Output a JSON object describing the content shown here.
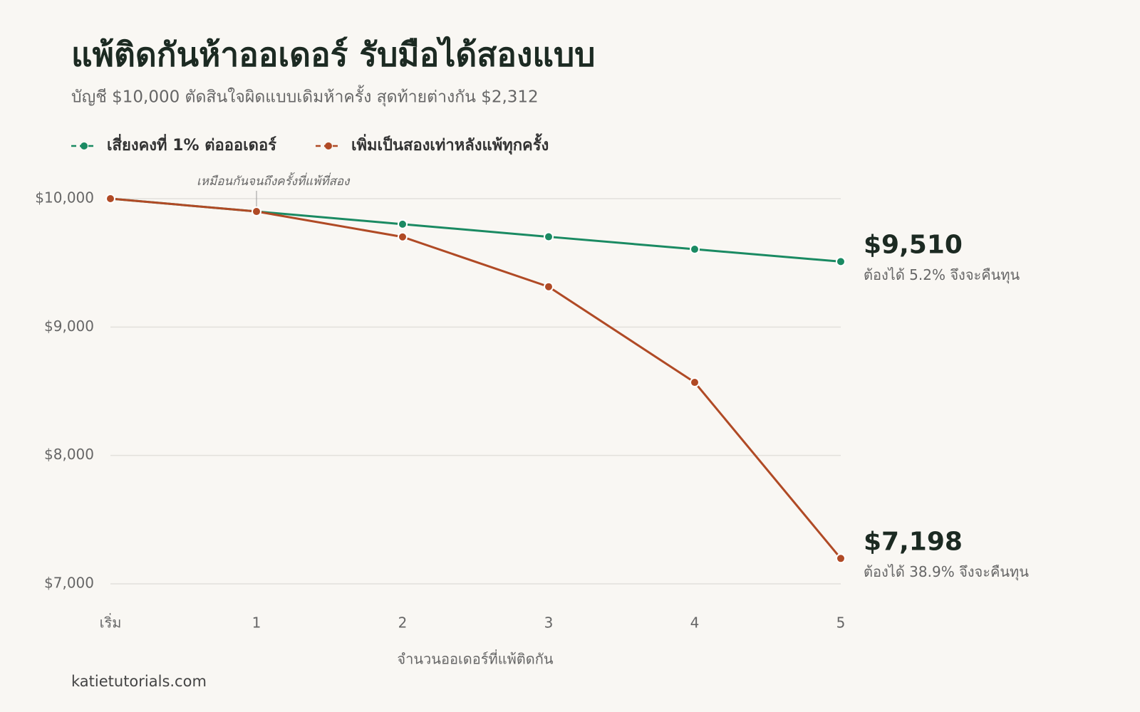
{
  "chart_data": {
    "type": "line",
    "title": "แพ้ติดกันห้าออเดอร์ รับมือได้สองแบบ",
    "subtitle": "บัญชี $10,000 ตัดสินใจผิดแบบเดิมห้าครั้ง สุดท้ายต่างกัน $2,312",
    "x_label": "จำนวนออเดอร์ที่แพ้ติดกัน",
    "source": "katietutorials.com",
    "categories": [
      "เริ่ม",
      "1",
      "2",
      "3",
      "4",
      "5"
    ],
    "series": [
      {
        "name": "เสี่ยงคงที่ 1% ต่อออเดอร์",
        "color": "#1a8a62",
        "values": [
          10000,
          9900,
          9801,
          9703,
          9606,
          9510
        ],
        "value_labels": [
          null,
          null,
          null,
          null,
          null,
          "$9,510"
        ],
        "note": "ต้องได้ 5.2% จึงจะคืนทุน"
      },
      {
        "name": "เพิ่มเป็นสองเท่าหลังแพ้ทุกครั้ง",
        "color": "#b04a25",
        "values": [
          10000,
          9900,
          9702,
          9314,
          8569,
          7198
        ],
        "value_labels": [
          null,
          null,
          null,
          null,
          null,
          "$7,198"
        ],
        "note": "ต้องได้ 38.9% จึงจะคืนทุน"
      }
    ],
    "annotation": {
      "text": "เหมือนกันจนถึงครั้งที่แพ้ที่สอง",
      "x": "1"
    },
    "ylim": [
      7000,
      10000
    ],
    "yticks": [
      {
        "value": 7000,
        "label": "$7,000"
      },
      {
        "value": 8000,
        "label": "$8,000"
      },
      {
        "value": 9000,
        "label": "$9,000"
      },
      {
        "value": 10000,
        "label": "$10,000"
      }
    ],
    "grid": true
  }
}
